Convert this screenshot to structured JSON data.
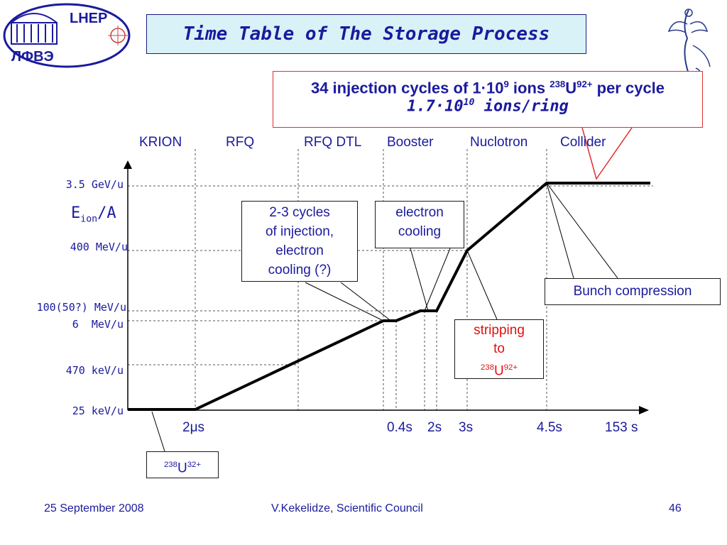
{
  "header": {
    "logo_left_top": "LHEP",
    "logo_left_bottom": "ЛФВЭ",
    "title": "Time Table of The Storage Process"
  },
  "callout_top": {
    "l1_a": "34 injection cycles of 1",
    "l1_dot": "·",
    "l1_b": "10",
    "l1_exp": "9",
    "l1_c": " ions ",
    "l1_mass": "238",
    "l1_elem": "U",
    "l1_charge": "92+",
    "l1_d": " per cycle",
    "l2_a": "1.7",
    "l2_dot": "·",
    "l2_b": "10",
    "l2_exp": "10",
    "l2_c": " ions/ring"
  },
  "stages": [
    "KRION",
    "RFQ",
    "RFQ DTL",
    "Booster",
    "Nuclotron",
    "Collider"
  ],
  "y_axis": {
    "title_main": "E",
    "title_sub": "ion",
    "title_tail": "/A",
    "labels": [
      "3.5 GeV/u",
      "400 MeV/u",
      "100(50?) MeV/u",
      "6  MeV/u",
      "470 keV/u",
      "25 keV/u"
    ]
  },
  "x_axis": {
    "mu_prefix": "2",
    "mu_symbol": "μ",
    "mu_suffix": "s",
    "labels": [
      "0.4s",
      "2s",
      "3s",
      "4.5s",
      "153 s"
    ]
  },
  "boxes": {
    "injection": [
      "2-3 cycles",
      "of injection,",
      "electron",
      "cooling (?)"
    ],
    "electron_cooling": [
      "electron",
      "cooling"
    ],
    "bunch_compression": "Bunch compression",
    "stripping_l1": "stripping",
    "stripping_l2": "to",
    "stripping_mass": "238",
    "stripping_elem": "U",
    "stripping_charge": "92+",
    "ion_mass": "238",
    "ion_elem": "U",
    "ion_charge": "32+"
  },
  "footer": {
    "date": "25 September 2008",
    "author": "V.Kekelidze, Scientific Council",
    "page": "46"
  },
  "colors": {
    "text": "#1a1a9e",
    "callout_border": "#e03030",
    "stripping": "#e01010",
    "title_bg": "#d9f2f7"
  }
}
